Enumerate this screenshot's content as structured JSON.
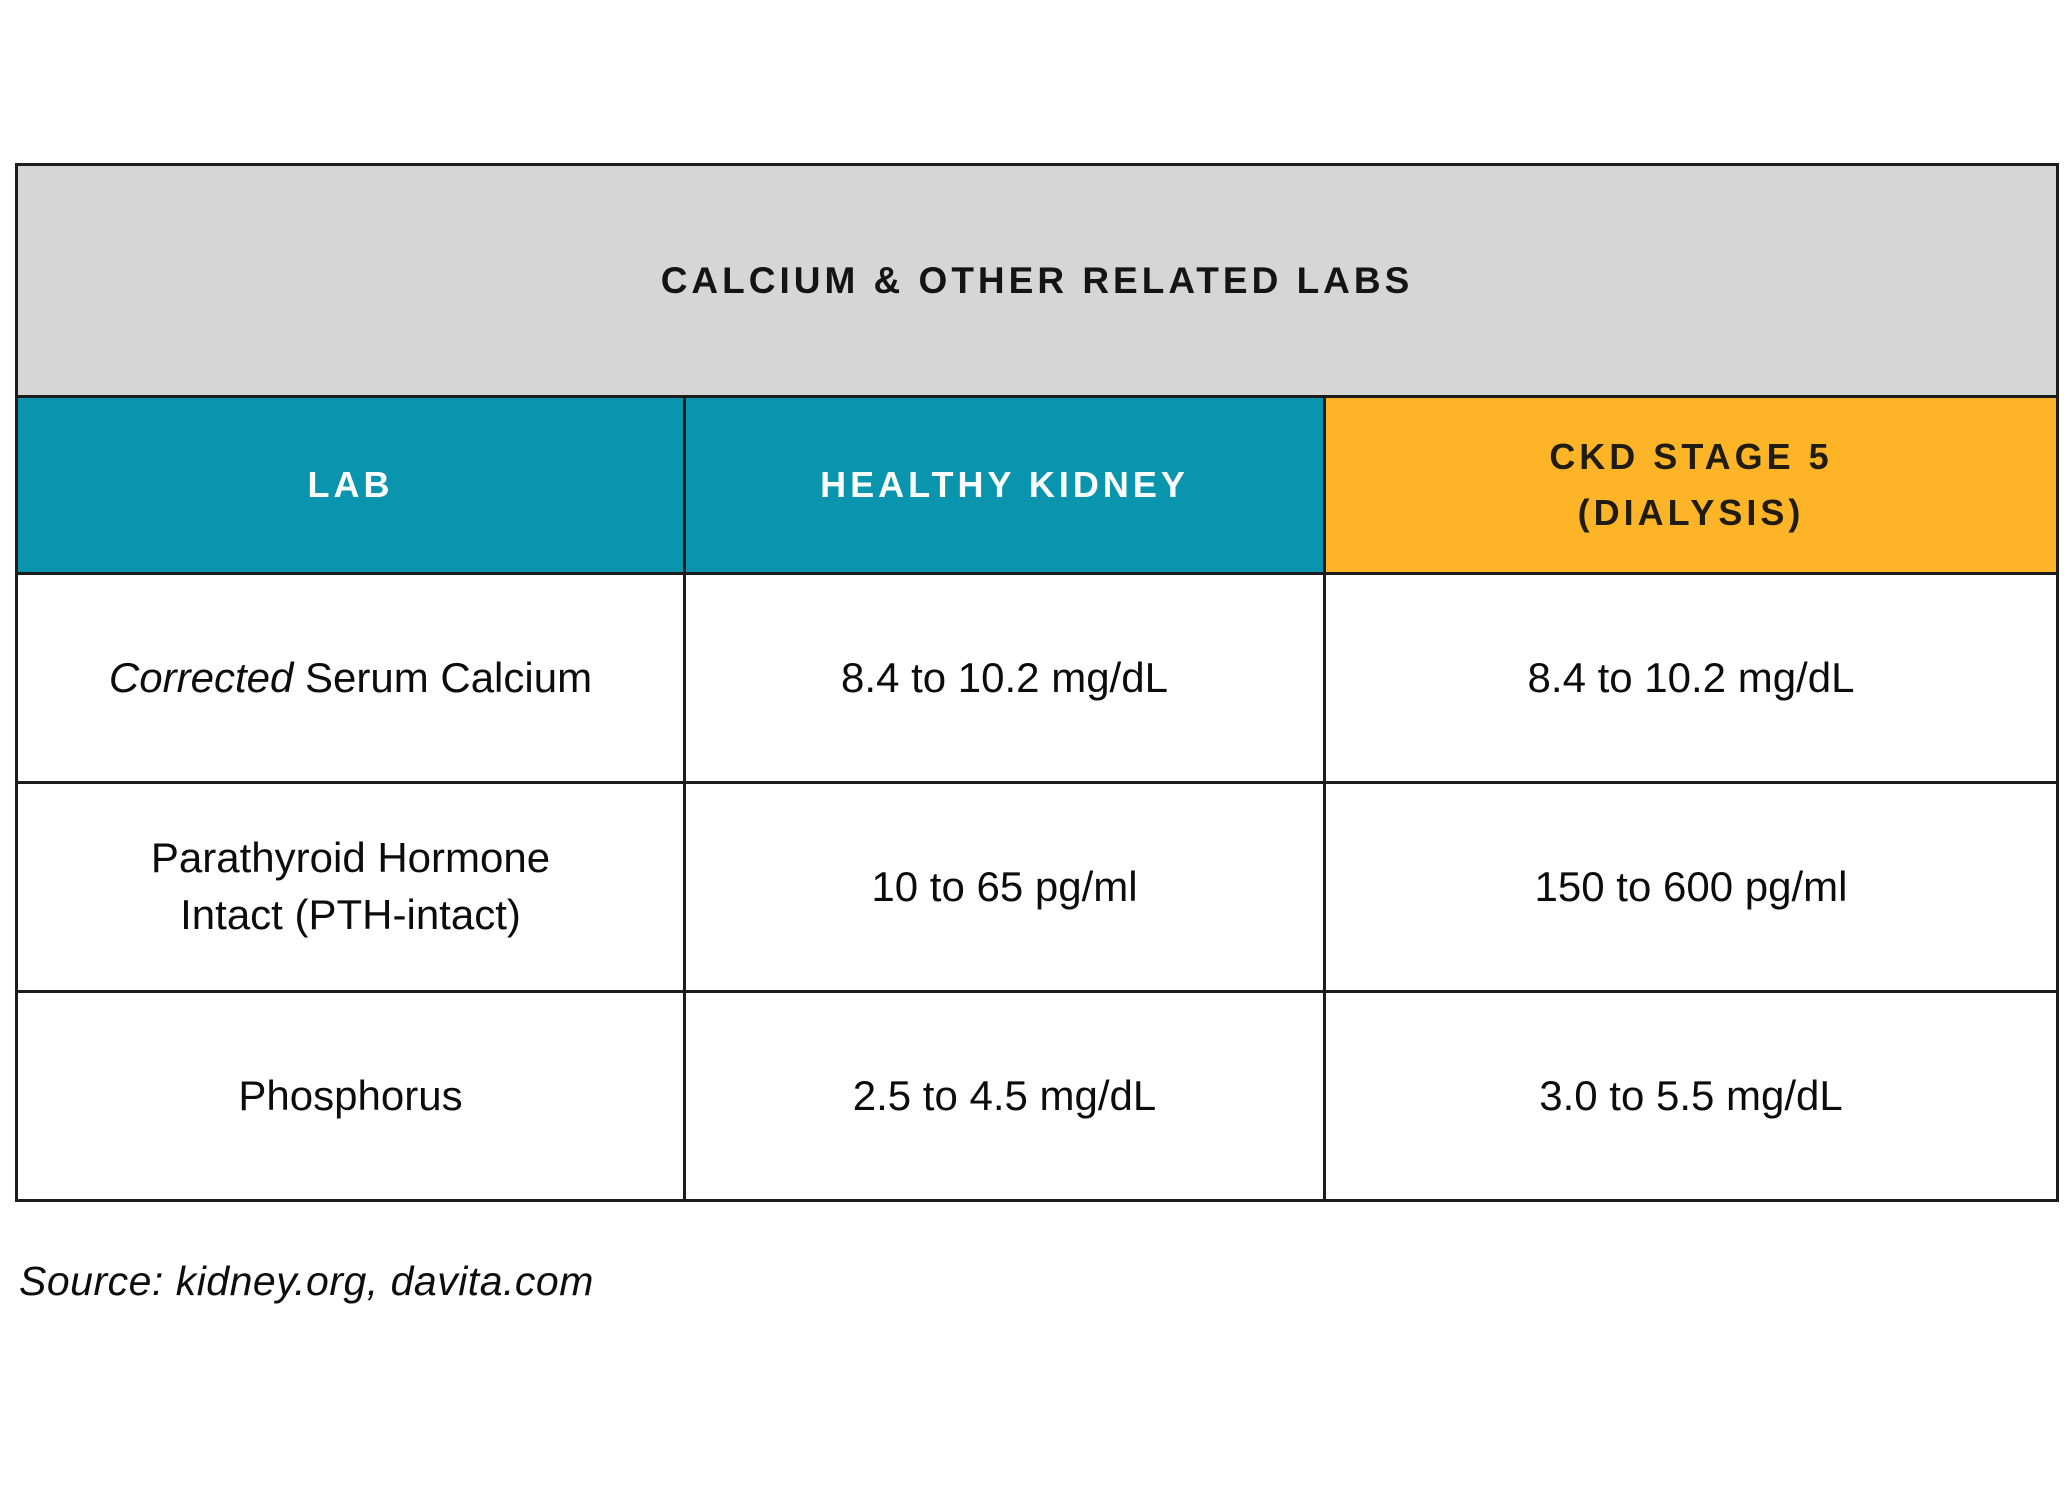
{
  "chart_data": {
    "type": "table",
    "title": "CALCIUM & OTHER RELATED LABS",
    "columns": [
      "LAB",
      "HEALTHY KIDNEY",
      "CKD STAGE 5\n(DIALYSIS)"
    ],
    "rows": [
      {
        "lab_italic": "Corrected",
        "lab_rest": " Serum Calcium",
        "healthy_kidney": "8.4 to 10.2 mg/dL",
        "ckd_stage5": "8.4 to 10.2 mg/dL"
      },
      {
        "lab": "Parathyroid Hormone\nIntact (PTH-intact)",
        "healthy_kidney": "10 to 65 pg/ml",
        "ckd_stage5": "150 to 600 pg/ml"
      },
      {
        "lab": "Phosphorus",
        "healthy_kidney": "2.5 to 4.5 mg/dL",
        "ckd_stage5": "3.0 to 5.5 mg/dL"
      }
    ],
    "source": "Source: kidney.org, davita.com",
    "layout": {
      "grid": true,
      "title_position": "top-banner",
      "source_position": "bottom-left"
    },
    "colors": {
      "title_bg": "#d6d6d6",
      "teal_header_bg": "#0995ae",
      "orange_header_bg": "#fdb527",
      "header_text_light": "#fbfdfd",
      "header_text_dark": "#201c10",
      "body_text": "#0c0c0c",
      "border": "#1c1c1c"
    }
  }
}
